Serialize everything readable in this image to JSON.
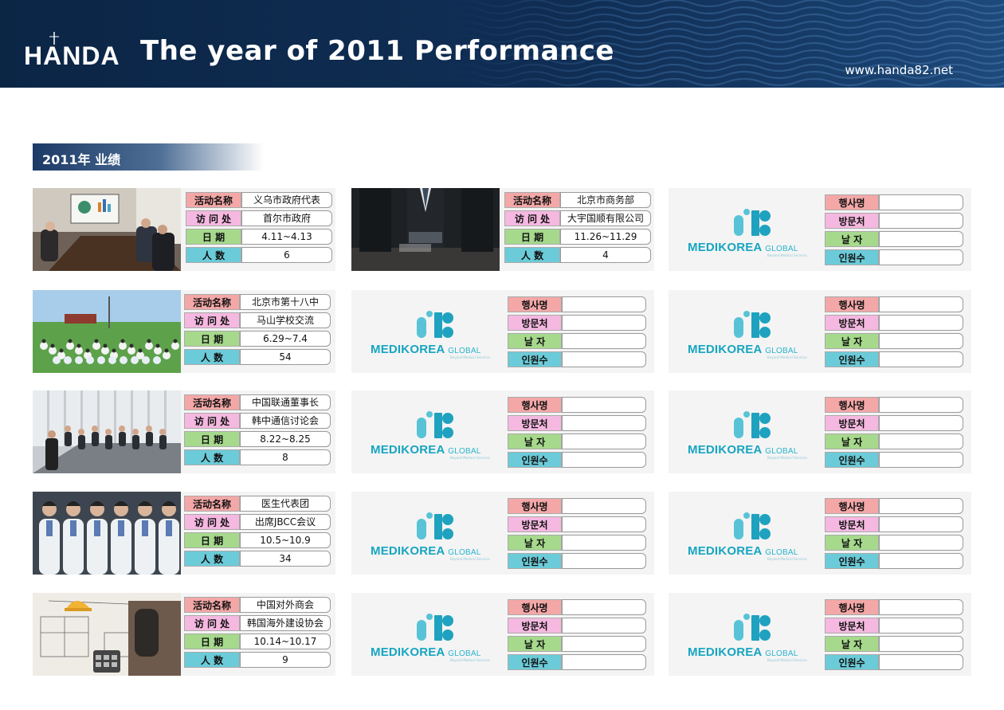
{
  "header": {
    "logo_text": "HANDA",
    "title": "The year of 2011  Performance",
    "website": "www.handa82.net"
  },
  "section_label": "2011年 业绩",
  "labels_cn": [
    "活动名称",
    "访 问 处",
    "日    期",
    "人    数"
  ],
  "labels_kr": [
    "행사명",
    "방문처",
    "날  자",
    "인원수"
  ],
  "brand": {
    "name": "MEDIKOREA",
    "suffix": "GLOBAL",
    "tagline": "Beyond Medical Services"
  },
  "colors": {
    "label1": "#f4a7a7",
    "label2": "#f5b8e0",
    "label3": "#a6d98c",
    "label4": "#6ccbd8",
    "brand": "#17a5c1",
    "header": "#0b2545"
  },
  "events": [
    {
      "name": "义乌市政府代表",
      "visit": "首尔市政府",
      "date": "4.11~4.13",
      "count": "6"
    },
    {
      "name": "北京市商务部",
      "visit": "大宇国顺有限公司",
      "date": "11.26~11.29",
      "count": "4"
    },
    {
      "name": "北京市第十八中",
      "visit": "马山学校交流",
      "date": "6.29~7.4",
      "count": "54"
    },
    {
      "name": "中国联通董事长",
      "visit": "韩中通信讨论会",
      "date": "8.22~8.25",
      "count": "8"
    },
    {
      "name": "医生代表团",
      "visit": "出席JBCC会议",
      "date": "10.5~10.9",
      "count": "34"
    },
    {
      "name": "中国对外商会",
      "visit": "韩国海外建设协会",
      "date": "10.14~10.17",
      "count": "9"
    }
  ]
}
